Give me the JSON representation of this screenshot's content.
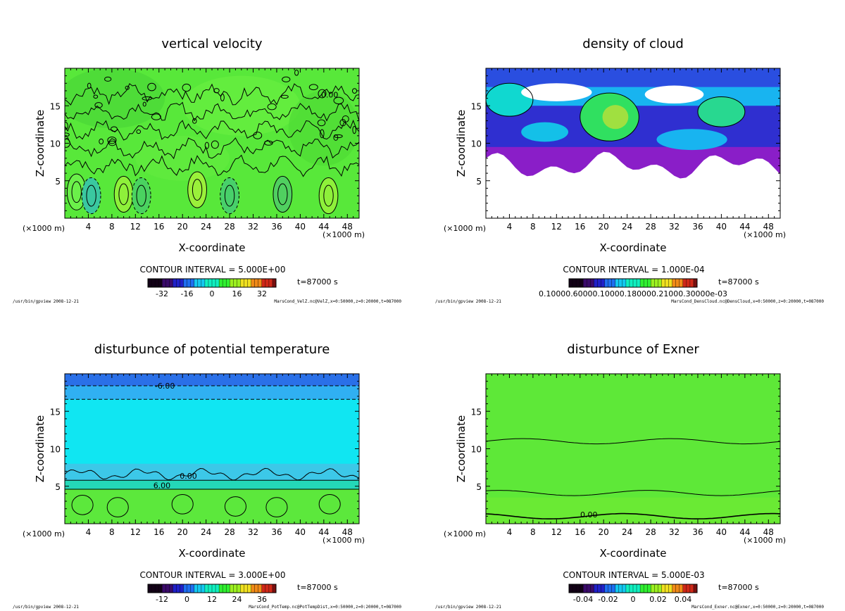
{
  "chart_data": [
    {
      "type": "heatmap",
      "title": "vertical velocity",
      "xlabel": "X-coordinate",
      "ylabel": "Z-coordinate",
      "x_unit": "(×1000 m)",
      "xlim": [
        0,
        50
      ],
      "ylim": [
        0,
        20
      ],
      "x_ticks": [
        4,
        8,
        12,
        16,
        20,
        24,
        28,
        32,
        36,
        40,
        44,
        48
      ],
      "y_ticks": [
        5,
        10,
        15
      ],
      "contour_interval": "CONTOUR INTERVAL = 5.000E+00",
      "time": "t=87000 s",
      "colorbar_ticks": [
        "-32",
        "-16",
        "0",
        "16",
        "32"
      ],
      "contour_labels": [
        "0.00"
      ],
      "footer_left": "/usr/bin/gpview 2008-12-21",
      "footer_right": "MarsCond_VelZ.nc@VelZ,x=0:50000,z=0:20000,t=087000"
    },
    {
      "type": "heatmap",
      "title": "density of cloud",
      "xlabel": "X-coordinate",
      "ylabel": "Z-coordinate",
      "x_unit": "(×1000 m)",
      "xlim": [
        0,
        50
      ],
      "ylim": [
        0,
        20
      ],
      "x_ticks": [
        4,
        8,
        12,
        16,
        20,
        24,
        28,
        32,
        36,
        40,
        44,
        48
      ],
      "y_ticks": [
        5,
        10,
        15
      ],
      "contour_interval": "CONTOUR INTERVAL = 1.000E-04",
      "time": "t=87000 s",
      "colorbar_ticks": [
        "0.10000E-05"
      ],
      "colorbar_overlap_text": "0.10000.60000.10000.180000.21000.30000e-03",
      "contour_labels": [],
      "footer_left": "/usr/bin/gpview 2008-12-21",
      "footer_right": "MarsCond_DensCloud.nc@DensCloud,x=0:50000,z=0:20000,t=087000"
    },
    {
      "type": "heatmap",
      "title": "disturbunce of potential temperature",
      "xlabel": "X-coordinate",
      "ylabel": "Z-coordinate",
      "x_unit": "(×1000 m)",
      "xlim": [
        0,
        50
      ],
      "ylim": [
        0,
        20
      ],
      "x_ticks": [
        4,
        8,
        12,
        16,
        20,
        24,
        28,
        32,
        36,
        40,
        44,
        48
      ],
      "y_ticks": [
        5,
        10,
        15
      ],
      "contour_interval": "CONTOUR INTERVAL = 3.000E+00",
      "time": "t=87000 s",
      "colorbar_ticks": [
        "-12",
        "0",
        "12",
        "24",
        "36"
      ],
      "contour_labels": [
        "-6.00",
        "0.00",
        "6.00"
      ],
      "footer_left": "/usr/bin/gpview 2008-12-21",
      "footer_right": "MarsCond_PotTemp.nc@PotTempDist,x=0:50000,z=0:20000,t=087000"
    },
    {
      "type": "heatmap",
      "title": "disturbunce of Exner",
      "xlabel": "X-coordinate",
      "ylabel": "Z-coordinate",
      "x_unit": "(×1000 m)",
      "xlim": [
        0,
        50
      ],
      "ylim": [
        0,
        20
      ],
      "x_ticks": [
        4,
        8,
        12,
        16,
        20,
        24,
        28,
        32,
        36,
        40,
        44,
        48
      ],
      "y_ticks": [
        5,
        10,
        15
      ],
      "contour_interval": "CONTOUR INTERVAL = 5.000E-03",
      "time": "t=87000 s",
      "colorbar_ticks": [
        "-0.04",
        "-0.02",
        "0",
        "0.02",
        "0.04"
      ],
      "contour_labels": [
        "0.00"
      ],
      "footer_left": "/usr/bin/gpview 2008-12-21",
      "footer_right": "MarsCond_Exner.nc@Exner,x=0:50000,z=0:20000,t=087000"
    }
  ]
}
